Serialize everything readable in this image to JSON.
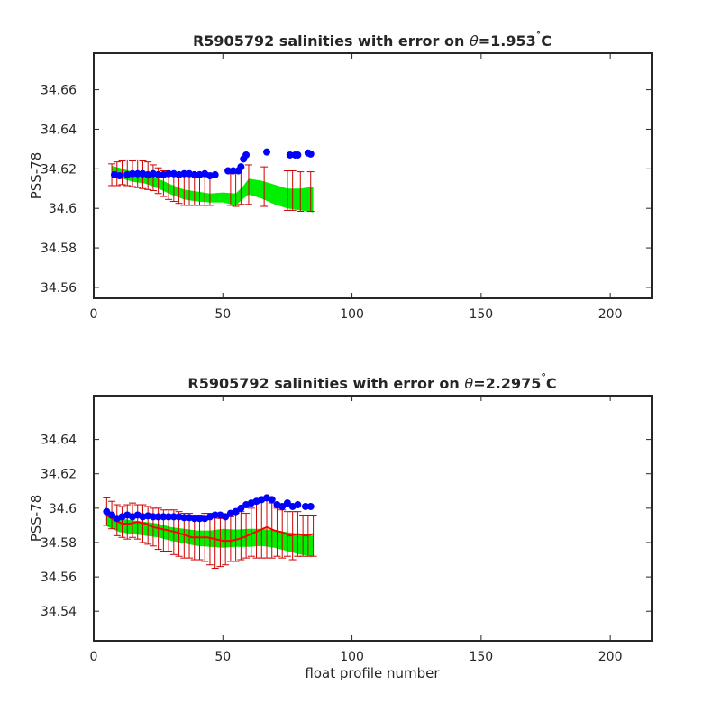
{
  "chart_data": [
    {
      "type": "scatter",
      "title_prefix": "R5905792 salinities with error on ",
      "title_symbol": "θ",
      "title_value": "=1.953",
      "title_degree": "°",
      "title_unit": "C",
      "xlabel": "",
      "ylabel": "PSS-78",
      "xlim": [
        0,
        216
      ],
      "ylim": [
        34.5545,
        34.6785
      ],
      "xticks": [
        0,
        50,
        100,
        150,
        200
      ],
      "xtick_labels": [
        "0",
        "50",
        "100",
        "150",
        "200"
      ],
      "yticks": [
        34.56,
        34.58,
        34.6,
        34.62,
        34.64,
        34.66
      ],
      "ytick_labels": [
        "34.56",
        "34.58",
        "34.6",
        "34.62",
        "34.64",
        "34.66"
      ],
      "grid": false,
      "series": [
        {
          "role": "band",
          "color": "#00ee00",
          "x": [
            7,
            10,
            15,
            20,
            25,
            30,
            35,
            40,
            45,
            50,
            55,
            58,
            60,
            65,
            70,
            75,
            80,
            85
          ],
          "upper": [
            34.6215,
            34.6205,
            34.6185,
            34.6175,
            34.615,
            34.612,
            34.6095,
            34.6085,
            34.6075,
            34.608,
            34.6075,
            34.6115,
            34.615,
            34.614,
            34.612,
            34.61,
            34.61,
            34.611
          ],
          "lower": [
            34.6165,
            34.6155,
            34.6135,
            34.6125,
            34.61,
            34.607,
            34.6045,
            34.6035,
            34.603,
            34.603,
            34.6015,
            34.605,
            34.607,
            34.605,
            34.602,
            34.6,
            34.599,
            34.598
          ]
        },
        {
          "role": "errorbars",
          "color": "#cc0000",
          "x": [
            7,
            9,
            11,
            13,
            15,
            17,
            19,
            21,
            23,
            25,
            27,
            29,
            31,
            33,
            35,
            37,
            39,
            41,
            43,
            45,
            53,
            55,
            57,
            60,
            66,
            75,
            77,
            80,
            84
          ],
          "y": [
            34.617,
            34.6175,
            34.618,
            34.618,
            34.6175,
            34.6175,
            34.617,
            34.6165,
            34.6155,
            34.614,
            34.6125,
            34.6115,
            34.6105,
            34.61,
            34.6095,
            34.6095,
            34.6095,
            34.6095,
            34.6095,
            34.6095,
            34.6095,
            34.61,
            34.611,
            34.612,
            34.611,
            34.609,
            34.609,
            34.6085,
            34.6085
          ],
          "err": [
            0.0055,
            0.006,
            0.006,
            0.0065,
            0.0065,
            0.007,
            0.007,
            0.007,
            0.0065,
            0.0065,
            0.0065,
            0.007,
            0.007,
            0.0075,
            0.008,
            0.008,
            0.008,
            0.008,
            0.008,
            0.008,
            0.008,
            0.009,
            0.009,
            0.01,
            0.01,
            0.01,
            0.01,
            0.01,
            0.01
          ]
        },
        {
          "role": "points",
          "color": "#0000ff",
          "x": [
            8,
            10,
            13,
            15,
            17,
            19,
            21,
            23,
            25,
            27,
            29,
            31,
            33,
            35,
            37,
            39,
            41,
            43,
            45,
            47,
            52,
            54,
            56,
            57,
            58,
            59,
            67,
            76,
            78,
            79,
            83,
            84
          ],
          "y": [
            34.617,
            34.6165,
            34.617,
            34.6175,
            34.6175,
            34.6175,
            34.617,
            34.6175,
            34.617,
            34.617,
            34.6175,
            34.6175,
            34.617,
            34.6175,
            34.6175,
            34.617,
            34.617,
            34.6175,
            34.6165,
            34.617,
            34.619,
            34.619,
            34.619,
            34.621,
            34.625,
            34.627,
            34.6285,
            34.627,
            34.627,
            34.627,
            34.628,
            34.6275
          ]
        }
      ]
    },
    {
      "type": "scatter",
      "title_prefix": "R5905792 salinities with error on ",
      "title_symbol": "θ",
      "title_value": "=2.2975",
      "title_degree": "°",
      "title_unit": "C",
      "xlabel": "float profile number",
      "ylabel": "PSS-78",
      "xlim": [
        0,
        216
      ],
      "ylim": [
        34.5228,
        34.6655
      ],
      "xticks": [
        0,
        50,
        100,
        150,
        200
      ],
      "xtick_labels": [
        "0",
        "50",
        "100",
        "150",
        "200"
      ],
      "yticks": [
        34.54,
        34.56,
        34.58,
        34.6,
        34.62,
        34.64
      ],
      "ytick_labels": [
        "34.54",
        "34.56",
        "34.58",
        "34.6",
        "34.62",
        "34.64"
      ],
      "grid": false,
      "series": [
        {
          "role": "band",
          "color": "#00ee00",
          "x": [
            5,
            10,
            15,
            20,
            25,
            30,
            35,
            40,
            45,
            50,
            55,
            60,
            65,
            70,
            75,
            80,
            85
          ],
          "upper": [
            34.5975,
            34.594,
            34.593,
            34.592,
            34.591,
            34.589,
            34.588,
            34.587,
            34.587,
            34.588,
            34.5875,
            34.588,
            34.588,
            34.587,
            34.586,
            34.585,
            34.584
          ],
          "lower": [
            34.5895,
            34.586,
            34.585,
            34.584,
            34.583,
            34.581,
            34.5795,
            34.578,
            34.5775,
            34.577,
            34.5775,
            34.5775,
            34.578,
            34.577,
            34.575,
            34.573,
            34.572
          ]
        },
        {
          "role": "errorbars",
          "color": "#cc0000",
          "x": [
            5,
            7,
            9,
            11,
            13,
            15,
            17,
            19,
            21,
            23,
            25,
            27,
            29,
            31,
            33,
            35,
            37,
            39,
            41,
            43,
            45,
            47,
            49,
            51,
            53,
            55,
            57,
            59,
            61,
            63,
            65,
            67,
            69,
            71,
            73,
            75,
            77,
            79,
            81,
            83,
            85
          ],
          "y": [
            34.598,
            34.596,
            34.593,
            34.592,
            34.592,
            34.593,
            34.592,
            34.591,
            34.59,
            34.589,
            34.588,
            34.587,
            34.587,
            34.586,
            34.585,
            34.584,
            34.584,
            34.583,
            34.583,
            34.583,
            34.582,
            34.581,
            34.58,
            34.581,
            34.582,
            34.583,
            34.584,
            34.584,
            34.586,
            34.587,
            34.588,
            34.588,
            34.587,
            34.586,
            34.585,
            34.585,
            34.584,
            34.585,
            34.584,
            34.584,
            34.584
          ],
          "err": [
            0.008,
            0.008,
            0.009,
            0.009,
            0.01,
            0.01,
            0.01,
            0.011,
            0.011,
            0.011,
            0.012,
            0.012,
            0.012,
            0.013,
            0.013,
            0.013,
            0.013,
            0.013,
            0.013,
            0.014,
            0.015,
            0.016,
            0.014,
            0.014,
            0.013,
            0.014,
            0.014,
            0.013,
            0.014,
            0.016,
            0.017,
            0.017,
            0.016,
            0.014,
            0.014,
            0.013,
            0.014,
            0.013,
            0.012,
            0.012,
            0.012
          ]
        },
        {
          "role": "line",
          "color": "#ff0000",
          "x": [
            5,
            8,
            11,
            14,
            17,
            20,
            23,
            26,
            29,
            32,
            35,
            38,
            41,
            44,
            47,
            50,
            53,
            56,
            58,
            61,
            64,
            67,
            70,
            73,
            76,
            79,
            82,
            85
          ],
          "y": [
            34.596,
            34.593,
            34.591,
            34.591,
            34.592,
            34.591,
            34.589,
            34.588,
            34.587,
            34.586,
            34.5845,
            34.583,
            34.583,
            34.583,
            34.582,
            34.581,
            34.581,
            34.582,
            34.583,
            34.585,
            34.587,
            34.589,
            34.587,
            34.586,
            34.584,
            34.585,
            34.584,
            34.585
          ]
        },
        {
          "role": "points",
          "color": "#0000ff",
          "x": [
            5,
            7,
            9,
            11,
            13,
            15,
            17,
            19,
            21,
            23,
            25,
            27,
            29,
            31,
            33,
            35,
            37,
            39,
            41,
            43,
            45,
            47,
            49,
            51,
            53,
            55,
            57,
            59,
            61,
            63,
            65,
            67,
            69,
            71,
            73,
            75,
            77,
            79,
            82,
            84
          ],
          "y": [
            34.598,
            34.596,
            34.594,
            34.595,
            34.596,
            34.595,
            34.596,
            34.595,
            34.5955,
            34.595,
            34.595,
            34.595,
            34.595,
            34.595,
            34.595,
            34.5945,
            34.5945,
            34.594,
            34.594,
            34.594,
            34.595,
            34.596,
            34.596,
            34.595,
            34.597,
            34.598,
            34.6,
            34.602,
            34.603,
            34.604,
            34.605,
            34.606,
            34.605,
            34.602,
            34.601,
            34.603,
            34.601,
            34.602,
            34.601,
            34.601
          ]
        }
      ]
    }
  ]
}
